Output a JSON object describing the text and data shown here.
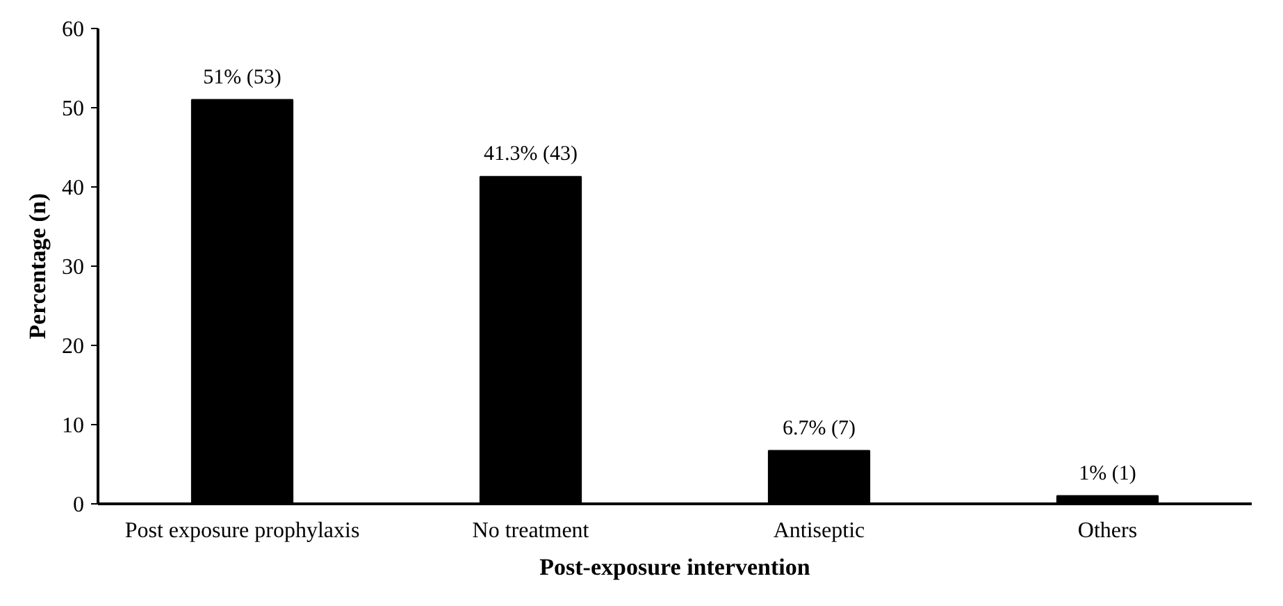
{
  "chart_data": {
    "type": "bar",
    "xlabel": "Post-exposure intervention",
    "ylabel": "Percentage (n)",
    "categories": [
      "Post exposure prophylaxis",
      "No treatment",
      "Antiseptic",
      "Others"
    ],
    "values": [
      51,
      41.3,
      6.7,
      1
    ],
    "value_labels": [
      "51% (53)",
      "41.3% (43)",
      "6.7% (7)",
      "1% (1)"
    ],
    "color": "#000000",
    "ylim": [
      0,
      60
    ],
    "yticks": [
      0,
      10,
      20,
      30,
      40,
      50,
      60
    ],
    "grid": false
  }
}
